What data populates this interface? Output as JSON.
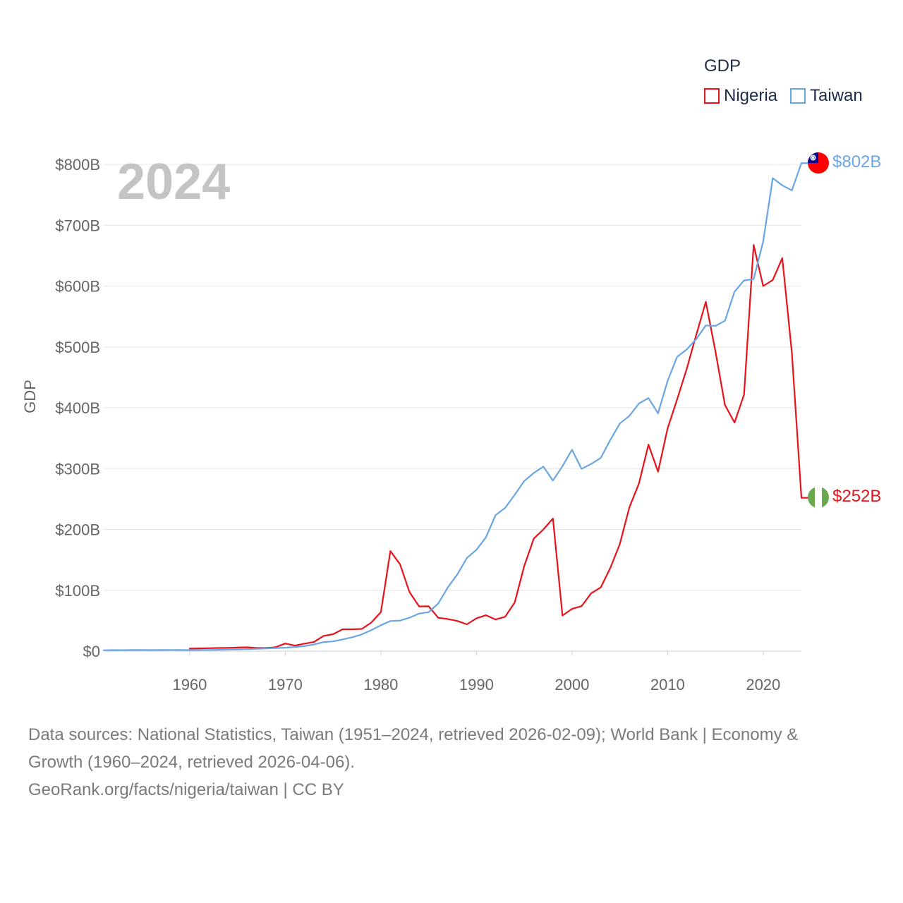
{
  "legend": {
    "title": "GDP",
    "items": [
      {
        "name": "Nigeria",
        "color": "#e8121a"
      },
      {
        "name": "Taiwan",
        "color": "#6aa6e3"
      }
    ]
  },
  "year_label": "2024",
  "end_labels": {
    "taiwan": "$802B",
    "nigeria": "$252B"
  },
  "chart_data": {
    "type": "line",
    "title": "",
    "xlabel": "",
    "ylabel": "GDP",
    "xlim": [
      1951,
      2024
    ],
    "ylim": [
      0,
      800
    ],
    "y_unit": "billions USD",
    "x_ticks": [
      1960,
      1970,
      1980,
      1990,
      2000,
      2010,
      2020
    ],
    "y_ticks": [
      0,
      100,
      200,
      300,
      400,
      500,
      600,
      700,
      800
    ],
    "y_tick_labels": [
      "$0",
      "$100B",
      "$200B",
      "$300B",
      "$400B",
      "$500B",
      "$600B",
      "$700B",
      "$800B"
    ],
    "grid": true,
    "series": [
      {
        "name": "Taiwan",
        "color": "#6aa6e3",
        "x": [
          1951,
          1952,
          1953,
          1954,
          1955,
          1956,
          1957,
          1958,
          1959,
          1960,
          1961,
          1962,
          1963,
          1964,
          1965,
          1966,
          1967,
          1968,
          1969,
          1970,
          1971,
          1972,
          1973,
          1974,
          1975,
          1976,
          1977,
          1978,
          1979,
          1980,
          1981,
          1982,
          1983,
          1984,
          1985,
          1986,
          1987,
          1988,
          1989,
          1990,
          1991,
          1992,
          1993,
          1994,
          1995,
          1996,
          1997,
          1998,
          1999,
          2000,
          2001,
          2002,
          2003,
          2004,
          2005,
          2006,
          2007,
          2008,
          2009,
          2010,
          2011,
          2012,
          2013,
          2014,
          2015,
          2016,
          2017,
          2018,
          2019,
          2020,
          2021,
          2022,
          2023,
          2024
        ],
        "values": [
          1.5,
          1.7,
          1.6,
          1.8,
          1.9,
          1.7,
          1.9,
          2.0,
          1.9,
          1.7,
          1.8,
          2.0,
          2.2,
          2.6,
          2.9,
          3.3,
          3.8,
          4.4,
          5.1,
          5.7,
          6.8,
          8.2,
          11.0,
          14.8,
          16.0,
          19.2,
          22.8,
          27.5,
          34.5,
          42.6,
          49.6,
          50.2,
          54.9,
          61.7,
          64.1,
          78.3,
          104.6,
          126.2,
          153.2,
          166.6,
          187.1,
          223.6,
          235.4,
          256.9,
          279.5,
          292.9,
          303.3,
          280.4,
          304.0,
          331.0,
          299.6,
          307.6,
          317.4,
          346.9,
          374.1,
          386.5,
          406.9,
          416.0,
          390.8,
          444.2,
          483.8,
          495.8,
          512.9,
          535.3,
          534.5,
          543.0,
          590.8,
          609.3,
          611.4,
          673.3,
          777.4,
          765.5,
          757.3,
          802.0
        ]
      },
      {
        "name": "Nigeria",
        "color": "#e8121a",
        "x": [
          1960,
          1961,
          1962,
          1963,
          1964,
          1965,
          1966,
          1967,
          1968,
          1969,
          1970,
          1971,
          1972,
          1973,
          1974,
          1975,
          1976,
          1977,
          1978,
          1979,
          1980,
          1981,
          1982,
          1983,
          1984,
          1985,
          1986,
          1987,
          1988,
          1989,
          1990,
          1991,
          1992,
          1993,
          1994,
          1995,
          1996,
          1997,
          1998,
          1999,
          2000,
          2001,
          2002,
          2003,
          2004,
          2005,
          2006,
          2007,
          2008,
          2009,
          2010,
          2011,
          2012,
          2013,
          2014,
          2015,
          2016,
          2017,
          2018,
          2019,
          2020,
          2021,
          2022,
          2023,
          2024
        ],
        "values": [
          4.2,
          4.5,
          4.9,
          5.2,
          5.5,
          5.9,
          6.4,
          5.2,
          5.2,
          6.6,
          12.5,
          9.2,
          12.3,
          15.2,
          25.0,
          27.8,
          36.0,
          36.0,
          36.5,
          47.0,
          64.2,
          164.5,
          142.8,
          97.1,
          73.5,
          73.7,
          54.8,
          52.7,
          49.6,
          44.0,
          54.0,
          59.0,
          52.0,
          56.5,
          80.0,
          140.0,
          185.0,
          200.0,
          218.0,
          58.5,
          69.5,
          74.0,
          95.0,
          104.7,
          136.4,
          176.1,
          236.1,
          275.6,
          339.5,
          295.0,
          366.0,
          414.1,
          463.9,
          520.1,
          574.2,
          493.0,
          404.6,
          375.7,
          421.7,
          667.6,
          600.0,
          610.0,
          646.0,
          490.0,
          252.0
        ]
      }
    ]
  },
  "source": {
    "line1": "Data sources: National Statistics, Taiwan (1951–2024, retrieved 2026-02-09); World Bank | Economy &",
    "line2": "Growth (1960–2024, retrieved 2026-04-06).",
    "line3": "GeoRank.org/facts/nigeria/taiwan | CC BY"
  }
}
